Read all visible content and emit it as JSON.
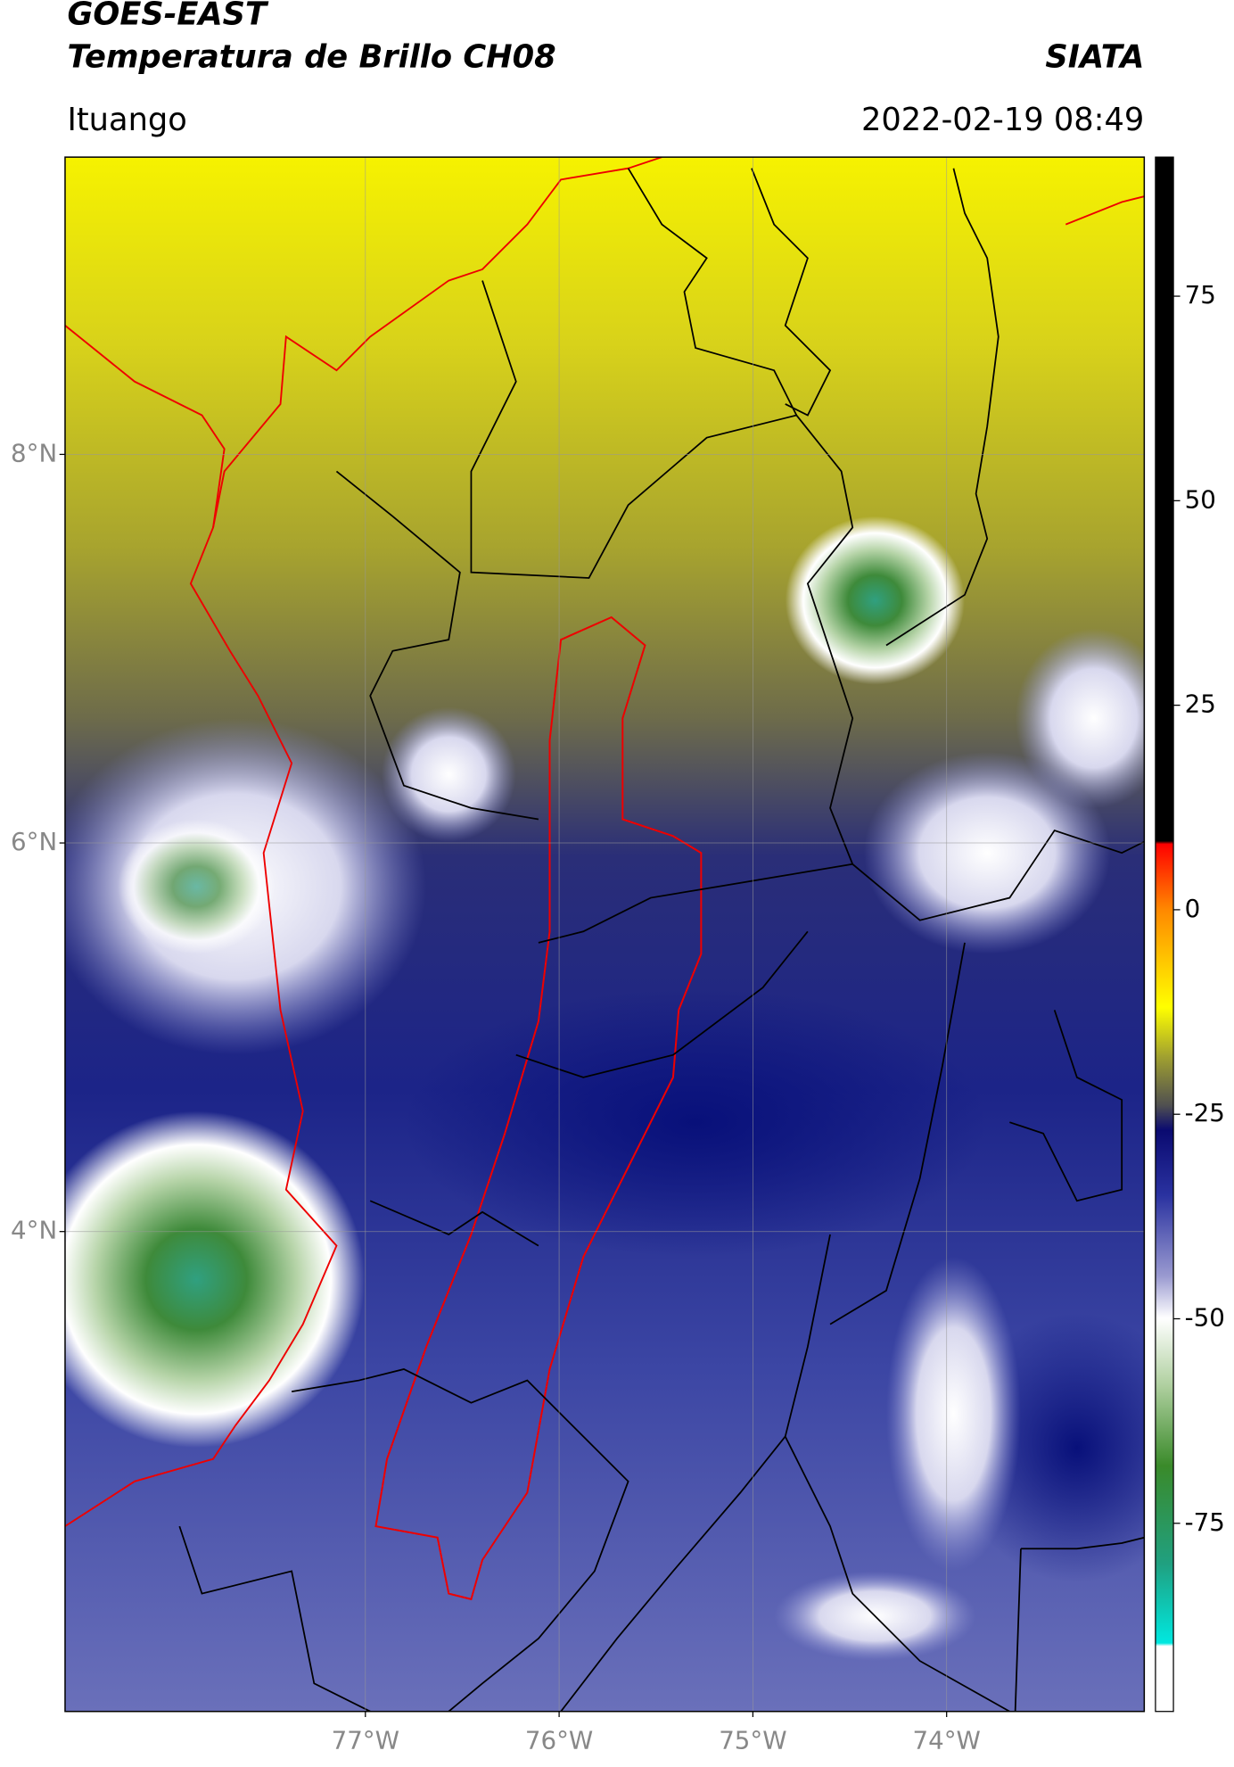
{
  "header": {
    "title": "GOES-EAST",
    "subtitle": "Temperatura de Brillo CH08",
    "source": "SIATA",
    "location": "Ituango",
    "datetime": "2022-02-19 08:49"
  },
  "map": {
    "latlim": [
      1.53,
      9.53
    ],
    "lonlim": [
      -78.55,
      -72.98
    ],
    "lat_ticks": [
      {
        "value": 8,
        "label": "8°N"
      },
      {
        "value": 6,
        "label": "6°N"
      },
      {
        "value": 4,
        "label": "4°N"
      }
    ],
    "lon_ticks": [
      {
        "value": -77,
        "label": "77°W"
      },
      {
        "value": -76,
        "label": "76°W"
      },
      {
        "value": -75,
        "label": "75°W"
      },
      {
        "value": -74,
        "label": "74°W"
      }
    ]
  },
  "colorbar": {
    "lim": [
      -98,
      92
    ],
    "ticks": [
      -75,
      -50,
      -25,
      0,
      25,
      50,
      75
    ]
  }
}
